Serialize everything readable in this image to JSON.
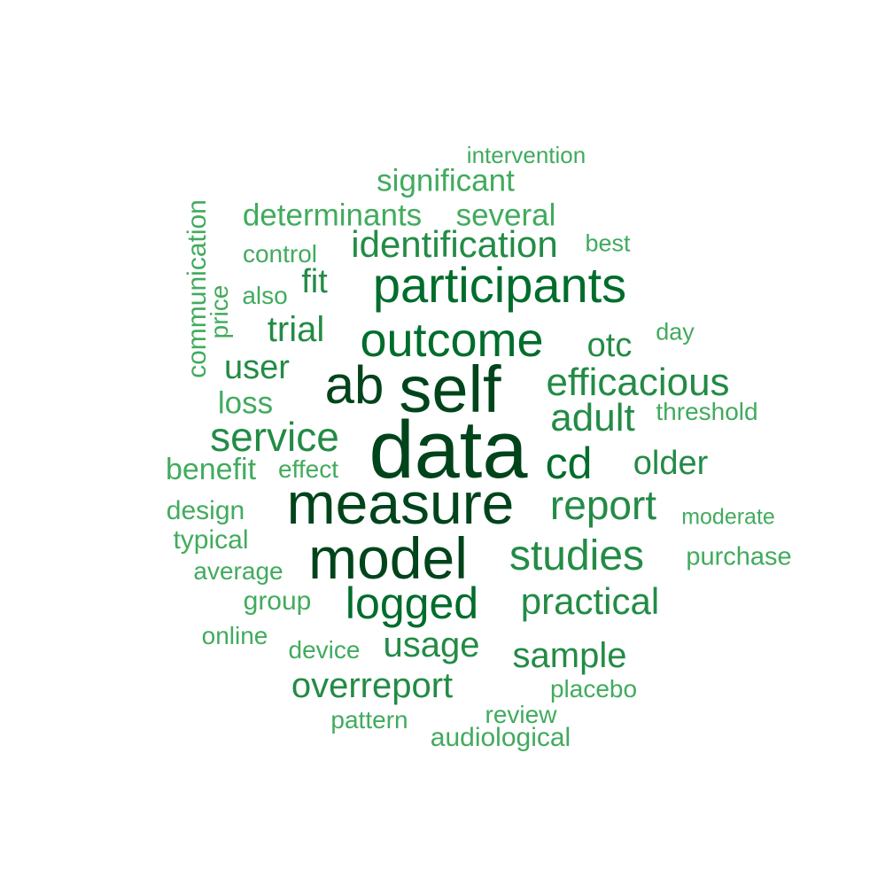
{
  "palette": {
    "darkest": "#00441b",
    "dark": "#006d2c",
    "mid": "#238b45",
    "light": "#41ab5d"
  },
  "words": [
    {
      "text": "data",
      "tone": "darkest"
    },
    {
      "text": "self",
      "tone": "darkest"
    },
    {
      "text": "measure",
      "tone": "darkest"
    },
    {
      "text": "model",
      "tone": "darkest"
    },
    {
      "text": "ab",
      "tone": "darkest"
    },
    {
      "text": "participants",
      "tone": "dark"
    },
    {
      "text": "outcome",
      "tone": "dark"
    },
    {
      "text": "cd",
      "tone": "dark"
    },
    {
      "text": "logged",
      "tone": "dark"
    },
    {
      "text": "studies",
      "tone": "mid"
    },
    {
      "text": "efficacious",
      "tone": "mid"
    },
    {
      "text": "report",
      "tone": "mid"
    },
    {
      "text": "service",
      "tone": "mid"
    },
    {
      "text": "identification",
      "tone": "mid"
    },
    {
      "text": "adult",
      "tone": "mid"
    },
    {
      "text": "practical",
      "tone": "mid"
    },
    {
      "text": "sample",
      "tone": "mid"
    },
    {
      "text": "overreport",
      "tone": "mid"
    },
    {
      "text": "usage",
      "tone": "mid"
    },
    {
      "text": "older",
      "tone": "mid"
    },
    {
      "text": "trial",
      "tone": "mid"
    },
    {
      "text": "user",
      "tone": "mid"
    },
    {
      "text": "otc",
      "tone": "mid"
    },
    {
      "text": "fit",
      "tone": "mid"
    },
    {
      "text": "determinants",
      "tone": "light"
    },
    {
      "text": "several",
      "tone": "light"
    },
    {
      "text": "significant",
      "tone": "light"
    },
    {
      "text": "loss",
      "tone": "light"
    },
    {
      "text": "benefit",
      "tone": "light"
    },
    {
      "text": "effect",
      "tone": "light"
    },
    {
      "text": "design",
      "tone": "light"
    },
    {
      "text": "typical",
      "tone": "light"
    },
    {
      "text": "average",
      "tone": "light"
    },
    {
      "text": "group",
      "tone": "light"
    },
    {
      "text": "online",
      "tone": "light"
    },
    {
      "text": "device",
      "tone": "light"
    },
    {
      "text": "pattern",
      "tone": "light"
    },
    {
      "text": "audiological",
      "tone": "light"
    },
    {
      "text": "review",
      "tone": "light"
    },
    {
      "text": "placebo",
      "tone": "light"
    },
    {
      "text": "purchase",
      "tone": "light"
    },
    {
      "text": "moderate",
      "tone": "light"
    },
    {
      "text": "threshold",
      "tone": "light"
    },
    {
      "text": "day",
      "tone": "light"
    },
    {
      "text": "best",
      "tone": "light"
    },
    {
      "text": "control",
      "tone": "light"
    },
    {
      "text": "also",
      "tone": "light"
    },
    {
      "text": "price",
      "tone": "light"
    },
    {
      "text": "communication",
      "tone": "light"
    },
    {
      "text": "intervention",
      "tone": "light"
    }
  ]
}
